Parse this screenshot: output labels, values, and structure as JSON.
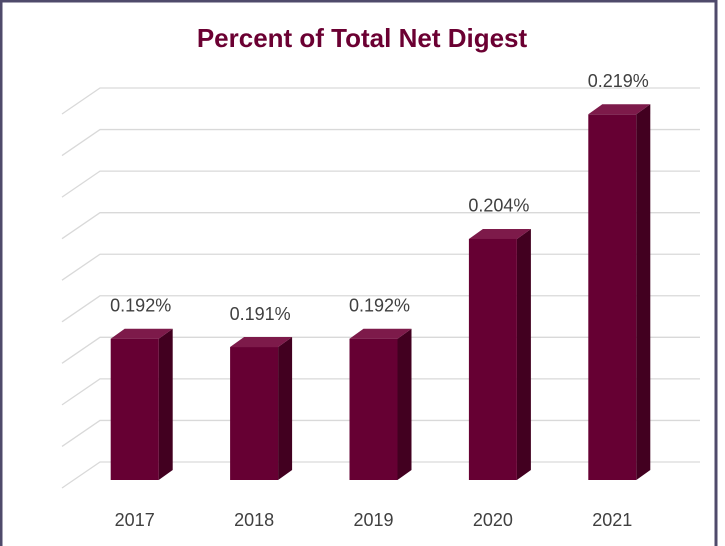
{
  "chart_data": {
    "type": "bar",
    "title": "Percent of Total Net Digest",
    "categories": [
      "2017",
      "2018",
      "2019",
      "2020",
      "2021"
    ],
    "values": [
      0.192,
      0.191,
      0.192,
      0.204,
      0.219
    ],
    "value_labels": [
      "0.192%",
      "0.191%",
      "0.192%",
      "0.204%",
      "0.219%"
    ],
    "color": "#660033",
    "ylim": [
      0.175,
      0.22
    ],
    "yticks": [
      0.175,
      0.18,
      0.185,
      0.19,
      0.195,
      0.2,
      0.205,
      0.21,
      0.215,
      0.22
    ],
    "grid": true
  }
}
